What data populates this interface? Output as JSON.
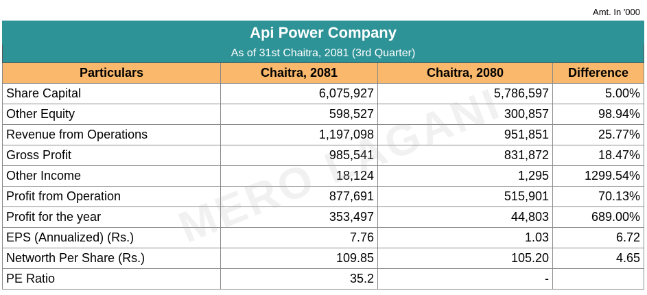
{
  "note": "Amt. In '000",
  "title": "Api Power Company",
  "subtitle": "As of 31st Chaitra, 2081 (3rd Quarter)",
  "watermark": "MERO LAGANI",
  "table": {
    "header": [
      "Particulars",
      "Chaitra, 2081",
      "Chaitra, 2080",
      "Difference"
    ],
    "rows": [
      [
        "Share Capital",
        "6,075,927",
        "5,786,597",
        "5.00%"
      ],
      [
        "Other Equity",
        "598,527",
        "300,857",
        "98.94%"
      ],
      [
        "Revenue from Operations",
        "1,197,098",
        "951,851",
        "25.77%"
      ],
      [
        "Gross Profit",
        "985,541",
        "831,872",
        "18.47%"
      ],
      [
        "Other Income",
        "18,124",
        "1,295",
        "1299.54%"
      ],
      [
        "Profit from Operation",
        "877,691",
        "515,901",
        "70.13%"
      ],
      [
        "Profit for the year",
        "353,497",
        "44,803",
        "689.00%"
      ],
      [
        "EPS (Annualized) (Rs.)",
        "7.76",
        "1.03",
        "6.72"
      ],
      [
        "Networth Per Share (Rs.)",
        "109.85",
        "105.20",
        "4.65"
      ],
      [
        "PE Ratio",
        "35.2",
        "-",
        ""
      ]
    ]
  }
}
